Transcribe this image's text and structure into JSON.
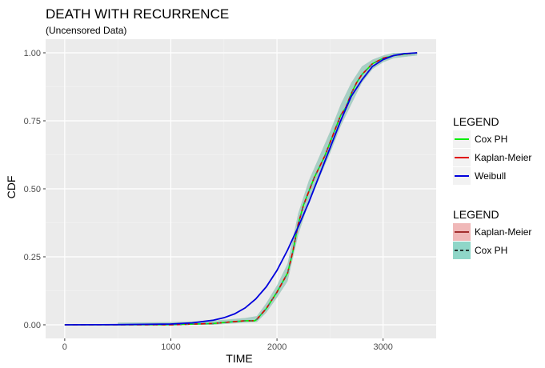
{
  "chart_data": {
    "type": "line",
    "title": "DEATH WITH RECURRENCE",
    "subtitle": "(Uncensored Data)",
    "xlabel": "TIME",
    "ylabel": "CDF",
    "xlim": [
      -180,
      3500
    ],
    "ylim": [
      -0.05,
      1.05
    ],
    "xticks": [
      0,
      1000,
      2000,
      3000
    ],
    "xtick_labels": [
      "0",
      "1000",
      "2000",
      "3000"
    ],
    "yticks": [
      0,
      0.25,
      0.5,
      0.75,
      1
    ],
    "ytick_labels": [
      "0.00",
      "0.25",
      "0.50",
      "0.75",
      "1.00"
    ],
    "grid": true,
    "legend_position": "right",
    "colors": {
      "panel": "#ebebeb",
      "grid": "#ffffff",
      "cox_ph": "#00ee00",
      "kaplan_meier": "#e00000",
      "weibull": "#0000dd",
      "band_km": "#f0b8b8",
      "band_cox": "#8fd6c8",
      "cox_dash": "#00aaaa"
    },
    "series": [
      {
        "name": "Cox PH",
        "color": "#00ee00",
        "x": [
          0,
          500,
          1000,
          1400,
          1550,
          1700,
          1790,
          1810,
          1900,
          2000,
          2100,
          2150,
          2200,
          2250,
          2300,
          2350,
          2400,
          2450,
          2500,
          2550,
          2600,
          2650,
          2700,
          2750,
          2800,
          2850,
          2900,
          2950,
          3000,
          3100,
          3200,
          3320
        ],
        "y": [
          0,
          0,
          0,
          0.005,
          0.01,
          0.015,
          0.015,
          0.02,
          0.06,
          0.12,
          0.19,
          0.27,
          0.37,
          0.44,
          0.49,
          0.54,
          0.58,
          0.62,
          0.67,
          0.72,
          0.77,
          0.8,
          0.85,
          0.89,
          0.92,
          0.94,
          0.96,
          0.97,
          0.98,
          0.99,
          0.995,
          1.0
        ]
      },
      {
        "name": "Kaplan-Meier",
        "color": "#e00000",
        "x": [
          0,
          500,
          1000,
          1400,
          1550,
          1700,
          1790,
          1810,
          1900,
          2000,
          2100,
          2150,
          2200,
          2250,
          2300,
          2350,
          2400,
          2450,
          2500,
          2550,
          2600,
          2650,
          2700,
          2750,
          2800,
          2850,
          2900,
          2950,
          3000,
          3100,
          3200,
          3320
        ],
        "y": [
          0,
          0,
          0,
          0.005,
          0.01,
          0.015,
          0.015,
          0.02,
          0.06,
          0.12,
          0.19,
          0.27,
          0.37,
          0.44,
          0.49,
          0.54,
          0.58,
          0.62,
          0.67,
          0.72,
          0.77,
          0.8,
          0.85,
          0.89,
          0.92,
          0.94,
          0.96,
          0.97,
          0.98,
          0.99,
          0.995,
          1.0
        ]
      },
      {
        "name": "Weibull",
        "color": "#0000dd",
        "x": [
          0,
          500,
          1000,
          1200,
          1400,
          1500,
          1600,
          1700,
          1800,
          1900,
          2000,
          2100,
          2200,
          2300,
          2400,
          2500,
          2600,
          2700,
          2800,
          2900,
          3000,
          3100,
          3200,
          3320
        ],
        "y": [
          0,
          0.0005,
          0.003,
          0.007,
          0.017,
          0.026,
          0.04,
          0.062,
          0.095,
          0.14,
          0.2,
          0.275,
          0.36,
          0.45,
          0.55,
          0.65,
          0.75,
          0.84,
          0.9,
          0.95,
          0.975,
          0.99,
          0.997,
          1.0
        ]
      }
    ],
    "bands": [
      {
        "name": "Kaplan-Meier",
        "color": "#f0b8b8",
        "x": [
          500,
          1000,
          1400,
          1700,
          1810,
          1900,
          2000,
          2100,
          2200,
          2300,
          2400,
          2500,
          2600,
          2700,
          2800,
          2900,
          3000,
          3100,
          3200,
          3320
        ],
        "lower": [
          0,
          0,
          0,
          0.008,
          0.01,
          0.045,
          0.1,
          0.16,
          0.33,
          0.45,
          0.54,
          0.63,
          0.73,
          0.81,
          0.89,
          0.94,
          0.965,
          0.98,
          0.985,
          0.99
        ],
        "upper": [
          0.008,
          0.01,
          0.015,
          0.025,
          0.032,
          0.08,
          0.145,
          0.225,
          0.41,
          0.53,
          0.62,
          0.71,
          0.81,
          0.89,
          0.95,
          0.975,
          0.99,
          1.0,
          1.0,
          1.0
        ]
      },
      {
        "name": "Cox PH",
        "color": "#8fd6c8",
        "x": [
          500,
          1000,
          1400,
          1700,
          1810,
          1900,
          2000,
          2100,
          2200,
          2300,
          2400,
          2500,
          2600,
          2700,
          2800,
          2900,
          3000,
          3100,
          3200,
          3320
        ],
        "lower": [
          0,
          0,
          0,
          0.008,
          0.01,
          0.045,
          0.1,
          0.16,
          0.33,
          0.45,
          0.54,
          0.63,
          0.73,
          0.81,
          0.89,
          0.94,
          0.965,
          0.98,
          0.985,
          0.99
        ],
        "upper": [
          0.008,
          0.01,
          0.015,
          0.025,
          0.032,
          0.08,
          0.145,
          0.225,
          0.41,
          0.53,
          0.62,
          0.71,
          0.81,
          0.89,
          0.95,
          0.975,
          0.99,
          1.0,
          1.0,
          1.0
        ]
      }
    ],
    "legends": [
      {
        "title": "LEGEND",
        "kind": "line",
        "items": [
          {
            "label": "Cox PH",
            "color": "#00ee00"
          },
          {
            "label": "Kaplan-Meier",
            "color": "#e00000"
          },
          {
            "label": "Weibull",
            "color": "#0000dd"
          }
        ]
      },
      {
        "title": "LEGEND",
        "kind": "band",
        "items": [
          {
            "label": "Kaplan-Meier",
            "fill": "#f0b8b8",
            "line": "#8b0000",
            "dash": false
          },
          {
            "label": "Cox PH",
            "fill": "#8fd6c8",
            "line": "#000000",
            "dash": true
          }
        ]
      }
    ]
  }
}
